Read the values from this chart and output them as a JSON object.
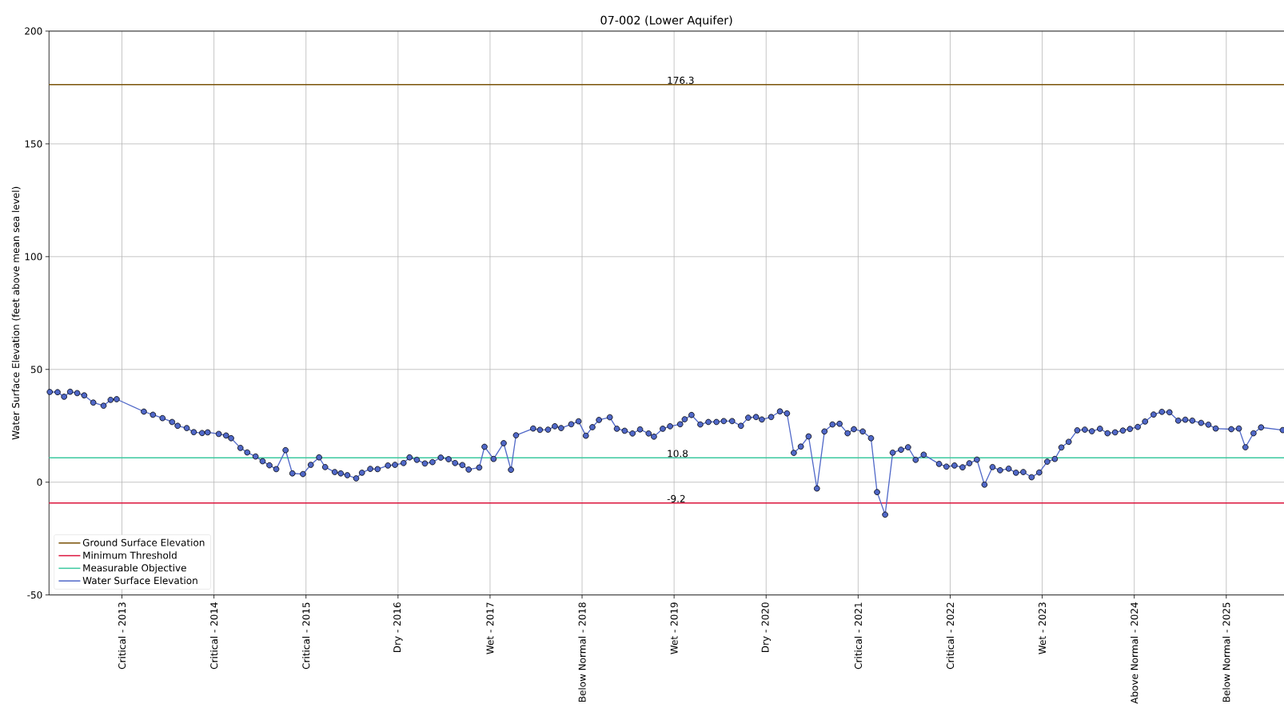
{
  "chart_data": {
    "type": "line",
    "title": "07-002 (Lower Aquifer)",
    "ylabel": "Water Surface Elevation (feet above mean sea level)",
    "series": [
      {
        "name": "Water Surface Elevation",
        "color": "#5068c8",
        "x": [
          "2012-03-20",
          "2012-04-20",
          "2012-05-16",
          "2012-06-09",
          "2012-07-07",
          "2012-08-04",
          "2012-09-09",
          "2012-10-20",
          "2012-11-17",
          "2012-12-11",
          "2013-03-29",
          "2013-05-04",
          "2013-06-11",
          "2013-07-19",
          "2013-08-10",
          "2013-09-15",
          "2013-10-13",
          "2013-11-15",
          "2013-12-07",
          "2014-01-20",
          "2014-02-18",
          "2014-03-10",
          "2014-04-16",
          "2014-05-13",
          "2014-06-15",
          "2014-07-13",
          "2014-08-09",
          "2014-09-05",
          "2014-10-12",
          "2014-11-08",
          "2014-12-20",
          "2015-01-20",
          "2015-02-22",
          "2015-03-18",
          "2015-04-25",
          "2015-05-19",
          "2015-06-14",
          "2015-07-19",
          "2015-08-11",
          "2015-09-13",
          "2015-10-12",
          "2015-11-22",
          "2015-12-20",
          "2016-01-23",
          "2016-02-16",
          "2016-03-16",
          "2016-04-17",
          "2016-05-17",
          "2016-06-19",
          "2016-07-20",
          "2016-08-15",
          "2016-09-13",
          "2016-10-08",
          "2016-11-19",
          "2016-12-10",
          "2017-01-15",
          "2017-02-24",
          "2017-03-25",
          "2017-04-14",
          "2017-06-21",
          "2017-07-18",
          "2017-08-19",
          "2017-09-15",
          "2017-10-10",
          "2017-11-19",
          "2017-12-18",
          "2018-01-16",
          "2018-02-11",
          "2018-03-09",
          "2018-04-21",
          "2018-05-19",
          "2018-06-19",
          "2018-07-20",
          "2018-08-19",
          "2018-09-22",
          "2018-10-13",
          "2018-11-17",
          "2018-12-16",
          "2019-01-25",
          "2019-02-12",
          "2019-03-11",
          "2019-04-15",
          "2019-05-17",
          "2019-06-18",
          "2019-07-17",
          "2019-08-19",
          "2019-09-23",
          "2019-10-22",
          "2019-11-22",
          "2019-12-15",
          "2020-01-21",
          "2020-02-25",
          "2020-03-24",
          "2020-04-20",
          "2020-05-18",
          "2020-06-18",
          "2020-07-21",
          "2020-08-20",
          "2020-09-21",
          "2020-10-19",
          "2020-11-20",
          "2020-12-15",
          "2021-01-19",
          "2021-02-21",
          "2021-03-17",
          "2021-04-18",
          "2021-05-18",
          "2021-06-20",
          "2021-07-18",
          "2021-08-17",
          "2021-09-18",
          "2021-11-18",
          "2021-12-17",
          "2022-01-18",
          "2022-02-19",
          "2022-03-18",
          "2022-04-17",
          "2022-05-17",
          "2022-06-18",
          "2022-07-18",
          "2022-08-21",
          "2022-09-19",
          "2022-10-18",
          "2022-11-20",
          "2022-12-20",
          "2023-01-21",
          "2023-02-20",
          "2023-03-18",
          "2023-04-16",
          "2023-05-20",
          "2023-06-19",
          "2023-07-17",
          "2023-08-18",
          "2023-09-17",
          "2023-10-17",
          "2023-11-17",
          "2023-12-15",
          "2024-01-15",
          "2024-02-13",
          "2024-03-18",
          "2024-04-20",
          "2024-05-20",
          "2024-06-24",
          "2024-07-22",
          "2024-08-19",
          "2024-09-23",
          "2024-10-22",
          "2024-11-20",
          "2025-01-21",
          "2025-02-20",
          "2025-03-18",
          "2025-04-19",
          "2025-05-19",
          "2025-08-13"
        ],
        "values": [
          40.0,
          39.9,
          37.9,
          40.1,
          39.5,
          38.5,
          35.3,
          33.9,
          36.5,
          36.8,
          31.3,
          29.9,
          28.4,
          26.7,
          25.0,
          24.0,
          22.2,
          21.8,
          22.1,
          21.4,
          20.7,
          19.5,
          15.2,
          13.2,
          11.4,
          9.3,
          7.5,
          5.8,
          14.2,
          3.9,
          3.6,
          7.7,
          11.0,
          6.7,
          4.5,
          3.9,
          3.1,
          1.7,
          4.2,
          5.9,
          5.8,
          7.4,
          7.7,
          8.5,
          11.0,
          9.9,
          8.3,
          8.9,
          10.9,
          10.2,
          8.5,
          7.6,
          5.6,
          6.5,
          15.7,
          10.3,
          17.3,
          5.5,
          20.8,
          23.8,
          23.2,
          23.3,
          24.8,
          24.0,
          25.7,
          27.0,
          20.6,
          24.4,
          27.6,
          28.8,
          23.7,
          22.8,
          21.6,
          23.4,
          21.6,
          20.2,
          23.7,
          24.8,
          25.7,
          27.9,
          29.8,
          25.6,
          26.7,
          26.7,
          27.1,
          27.1,
          25.0,
          28.6,
          28.9,
          27.8,
          28.9,
          31.4,
          30.5,
          13.0,
          15.8,
          20.3,
          -2.8,
          22.5,
          25.6,
          25.9,
          21.7,
          23.5,
          22.5,
          19.5,
          -4.4,
          -14.4,
          13.1,
          14.4,
          15.5,
          9.9,
          12.2,
          8.1,
          6.9,
          7.4,
          6.6,
          8.4,
          10.0,
          -1.1,
          6.7,
          5.3,
          6.0,
          4.2,
          4.5,
          2.2,
          4.3,
          9.1,
          10.3,
          15.4,
          17.9,
          23.0,
          23.3,
          22.6,
          23.7,
          21.7,
          22.1,
          22.9,
          23.6,
          24.5,
          26.9,
          30.0,
          31.2,
          31.0,
          27.3,
          27.7,
          27.3,
          26.3,
          25.5,
          23.8,
          23.5,
          23.8,
          15.5,
          21.7,
          24.3,
          23.1
        ]
      }
    ],
    "xlim": [
      "2012-03-17",
      "2025-08-18"
    ],
    "xticks": [
      {
        "value": "2013-01-01",
        "label": "Critical - 2013"
      },
      {
        "value": "2014-01-01",
        "label": "Critical - 2014"
      },
      {
        "value": "2015-01-01",
        "label": "Critical - 2015"
      },
      {
        "value": "2016-01-01",
        "label": "Dry - 2016"
      },
      {
        "value": "2017-01-01",
        "label": "Wet - 2017"
      },
      {
        "value": "2018-01-01",
        "label": "Below Normal - 2018"
      },
      {
        "value": "2019-01-01",
        "label": "Wet - 2019"
      },
      {
        "value": "2020-01-01",
        "label": "Dry - 2020"
      },
      {
        "value": "2021-01-01",
        "label": "Critical - 2021"
      },
      {
        "value": "2022-01-01",
        "label": "Critical - 2022"
      },
      {
        "value": "2023-01-01",
        "label": "Wet - 2023"
      },
      {
        "value": "2024-01-01",
        "label": "Above Normal - 2024"
      },
      {
        "value": "2025-01-01",
        "label": "Below Normal - 2025"
      }
    ],
    "ylim": [
      -50,
      200
    ],
    "yticks": [
      -50,
      0,
      50,
      100,
      150,
      200
    ],
    "ref_lines": [
      {
        "axis": "y",
        "value": 176.3,
        "label": "Ground Surface Elevation",
        "color": "#7a5208"
      },
      {
        "axis": "y",
        "value": -9.2,
        "label": "Minimum Threshold",
        "color": "#dc143c"
      },
      {
        "axis": "y",
        "value": 10.8,
        "label": "Measurable Objective",
        "color": "#3cc9a0"
      }
    ],
    "annotations": [
      {
        "text": "176.3",
        "x": "2018-12-01",
        "y": 176.3
      },
      {
        "text": "10.8",
        "x": "2018-12-01",
        "y": 10.8
      },
      {
        "text": "-9.2",
        "x": "2018-12-01",
        "y": -9.2
      }
    ],
    "grid": true,
    "legend": "bottom left",
    "marker": "circle",
    "line_style": "solid"
  }
}
